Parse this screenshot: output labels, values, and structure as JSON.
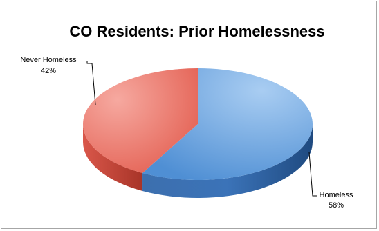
{
  "chart_data": {
    "type": "pie",
    "title": "CO Residents: Prior Homelessness",
    "slices": [
      {
        "label": "Homeless",
        "value": 58,
        "value_text": "58%",
        "color": "#5b9bd5"
      },
      {
        "label": "Never Homeless",
        "value": 42,
        "value_text": "42%",
        "color": "#e46c5f"
      }
    ],
    "style": "3d",
    "legend": "none"
  }
}
